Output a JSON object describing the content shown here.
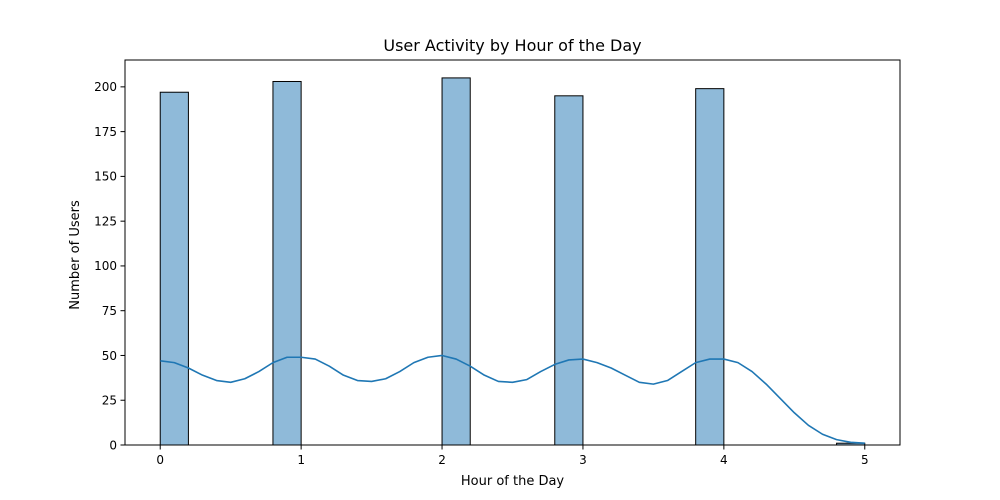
{
  "chart_data": {
    "type": "bar",
    "title": "User Activity by Hour of the Day",
    "xlabel": "Hour of the Day",
    "ylabel": "Number of Users",
    "xlim": [
      -0.25,
      5.25
    ],
    "ylim": [
      0,
      215
    ],
    "xticks": [
      0,
      1,
      2,
      3,
      4,
      5
    ],
    "yticks": [
      0,
      25,
      50,
      75,
      100,
      125,
      150,
      175,
      200
    ],
    "bin_width": 0.2,
    "bars": [
      {
        "x0": 0.0,
        "x1": 0.2,
        "value": 197
      },
      {
        "x0": 0.8,
        "x1": 1.0,
        "value": 203
      },
      {
        "x0": 2.0,
        "x1": 2.2,
        "value": 205
      },
      {
        "x0": 2.8,
        "x1": 3.0,
        "value": 195
      },
      {
        "x0": 3.8,
        "x1": 4.0,
        "value": 199
      },
      {
        "x0": 4.8,
        "x1": 5.0,
        "value": 1
      }
    ],
    "kde_line": {
      "x": [
        0.0,
        0.1,
        0.2,
        0.3,
        0.4,
        0.5,
        0.6,
        0.7,
        0.8,
        0.9,
        1.0,
        1.1,
        1.2,
        1.3,
        1.4,
        1.5,
        1.6,
        1.7,
        1.8,
        1.9,
        2.0,
        2.1,
        2.2,
        2.3,
        2.4,
        2.5,
        2.6,
        2.7,
        2.8,
        2.9,
        3.0,
        3.1,
        3.2,
        3.3,
        3.4,
        3.5,
        3.6,
        3.7,
        3.8,
        3.9,
        4.0,
        4.1,
        4.2,
        4.3,
        4.4,
        4.5,
        4.6,
        4.7,
        4.8,
        4.9,
        5.0
      ],
      "y": [
        47,
        46,
        43,
        39,
        36,
        35,
        37,
        41,
        46,
        49,
        49,
        48,
        44,
        39,
        36,
        35.5,
        37,
        41,
        46,
        49,
        50,
        48,
        44,
        39,
        35.5,
        35,
        36.5,
        41,
        45,
        47.5,
        48,
        46,
        43,
        39,
        35,
        34,
        36,
        41,
        46,
        48,
        48,
        46,
        41,
        34,
        26,
        18,
        11,
        6,
        3,
        1.5,
        1
      ]
    },
    "colors": {
      "bar_fill": "#8fbad9",
      "bar_edge": "#000000",
      "line": "#1f77b4"
    }
  }
}
